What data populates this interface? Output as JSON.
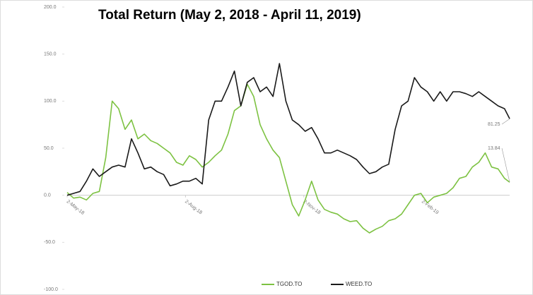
{
  "chart_data": {
    "type": "line",
    "title": "Total Return (May 2, 2018 - April 11, 2019)",
    "x": [
      "2018-05-02",
      "2018-05-07",
      "2018-05-12",
      "2018-05-17",
      "2018-05-22",
      "2018-05-27",
      "2018-06-01",
      "2018-06-06",
      "2018-06-11",
      "2018-06-16",
      "2018-06-21",
      "2018-06-26",
      "2018-07-01",
      "2018-07-06",
      "2018-07-11",
      "2018-07-16",
      "2018-07-21",
      "2018-07-26",
      "2018-07-31",
      "2018-08-05",
      "2018-08-10",
      "2018-08-15",
      "2018-08-20",
      "2018-08-25",
      "2018-08-30",
      "2018-09-04",
      "2018-09-09",
      "2018-09-14",
      "2018-09-19",
      "2018-09-24",
      "2018-09-29",
      "2018-10-04",
      "2018-10-09",
      "2018-10-14",
      "2018-10-19",
      "2018-10-24",
      "2018-10-29",
      "2018-11-03",
      "2018-11-08",
      "2018-11-13",
      "2018-11-18",
      "2018-11-23",
      "2018-11-28",
      "2018-12-03",
      "2018-12-08",
      "2018-12-13",
      "2018-12-18",
      "2018-12-23",
      "2018-12-28",
      "2019-01-02",
      "2019-01-07",
      "2019-01-12",
      "2019-01-17",
      "2019-01-22",
      "2019-01-27",
      "2019-02-01",
      "2019-02-06",
      "2019-02-11",
      "2019-02-16",
      "2019-02-21",
      "2019-02-26",
      "2019-03-03",
      "2019-03-08",
      "2019-03-13",
      "2019-03-18",
      "2019-03-23",
      "2019-03-28",
      "2019-04-02",
      "2019-04-07",
      "2019-04-11"
    ],
    "series": [
      {
        "name": "TGOD.TO",
        "color": "#7dc242",
        "values": [
          3,
          -3,
          -2,
          -5,
          2,
          4,
          40,
          100,
          92,
          70,
          80,
          60,
          65,
          58,
          55,
          50,
          45,
          35,
          32,
          42,
          38,
          30,
          35,
          42,
          48,
          65,
          90,
          95,
          118,
          105,
          75,
          60,
          48,
          40,
          15,
          -10,
          -22,
          -5,
          15,
          -5,
          -15,
          -18,
          -20,
          -25,
          -28,
          -27,
          -35,
          -40,
          -36,
          -33,
          -27,
          -25,
          -20,
          -10,
          0,
          2,
          -8,
          -2,
          0,
          2,
          8,
          18,
          20,
          30,
          35,
          45,
          30,
          28,
          18,
          13.84
        ]
      },
      {
        "name": "WEED.TO",
        "color": "#1a1a1a",
        "values": [
          0,
          2,
          4,
          15,
          28,
          20,
          25,
          30,
          32,
          30,
          60,
          45,
          28,
          30,
          25,
          22,
          10,
          12,
          15,
          15,
          18,
          12,
          80,
          100,
          100,
          115,
          132,
          95,
          120,
          125,
          110,
          115,
          105,
          140,
          100,
          80,
          75,
          68,
          72,
          60,
          45,
          45,
          48,
          45,
          42,
          38,
          30,
          23,
          25,
          30,
          33,
          70,
          95,
          100,
          125,
          115,
          110,
          100,
          110,
          100,
          110,
          110,
          108,
          105,
          110,
          105,
          100,
          95,
          92,
          81.25
        ]
      }
    ],
    "xlim": [
      "2018-05-02",
      "2019-04-11"
    ],
    "xticks": [
      {
        "value": "2018-05-02",
        "label": "2-May-18"
      },
      {
        "value": "2018-08-02",
        "label": "2-Aug-18"
      },
      {
        "value": "2018-11-02",
        "label": "2-Nov-18"
      },
      {
        "value": "2019-02-02",
        "label": "2-Feb-19"
      }
    ],
    "ylim": [
      -100,
      200
    ],
    "yticks": [
      {
        "value": -100,
        "label": "-100.0"
      },
      {
        "value": -50,
        "label": "-50.0"
      },
      {
        "value": 0,
        "label": "0.0"
      },
      {
        "value": 50,
        "label": "50.0"
      },
      {
        "value": 100,
        "label": "100.0"
      },
      {
        "value": 150,
        "label": "150.0"
      },
      {
        "value": 200,
        "label": "200.0"
      }
    ],
    "legend": "bottom"
  }
}
